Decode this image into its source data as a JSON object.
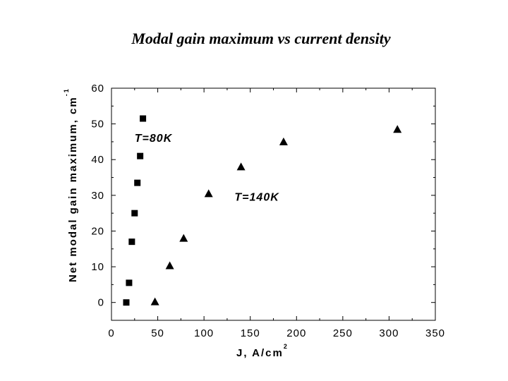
{
  "chart_data": {
    "type": "scatter",
    "title": "Modal gain maximum vs current density",
    "xlabel": {
      "base": "J, A/cm",
      "sup": "2"
    },
    "ylabel": {
      "base": "Net modal gain maximum, cm",
      "sup": "-1"
    },
    "xlim": [
      0,
      350
    ],
    "ylim": [
      -5,
      60
    ],
    "xticks": [
      0,
      50,
      100,
      150,
      200,
      250,
      300,
      350
    ],
    "yticks": [
      0,
      10,
      20,
      30,
      40,
      50,
      60
    ],
    "grid": false,
    "series": [
      {
        "name": "T=80K",
        "marker": "square",
        "color": "#000000",
        "x": [
          16,
          19,
          22,
          25,
          28,
          31,
          34
        ],
        "y": [
          0,
          5.5,
          17,
          25,
          33.5,
          41,
          51.5
        ]
      },
      {
        "name": "T=140K",
        "marker": "triangle",
        "color": "#000000",
        "x": [
          47,
          63,
          78,
          105,
          140,
          186,
          309
        ],
        "y": [
          0.2,
          10.3,
          18,
          30.5,
          38,
          45,
          48.5
        ]
      }
    ],
    "annotations": [
      {
        "text": "T=80K",
        "x": 25,
        "y": 45
      },
      {
        "text": "T=140K",
        "x": 133,
        "y": 28.5
      }
    ]
  }
}
